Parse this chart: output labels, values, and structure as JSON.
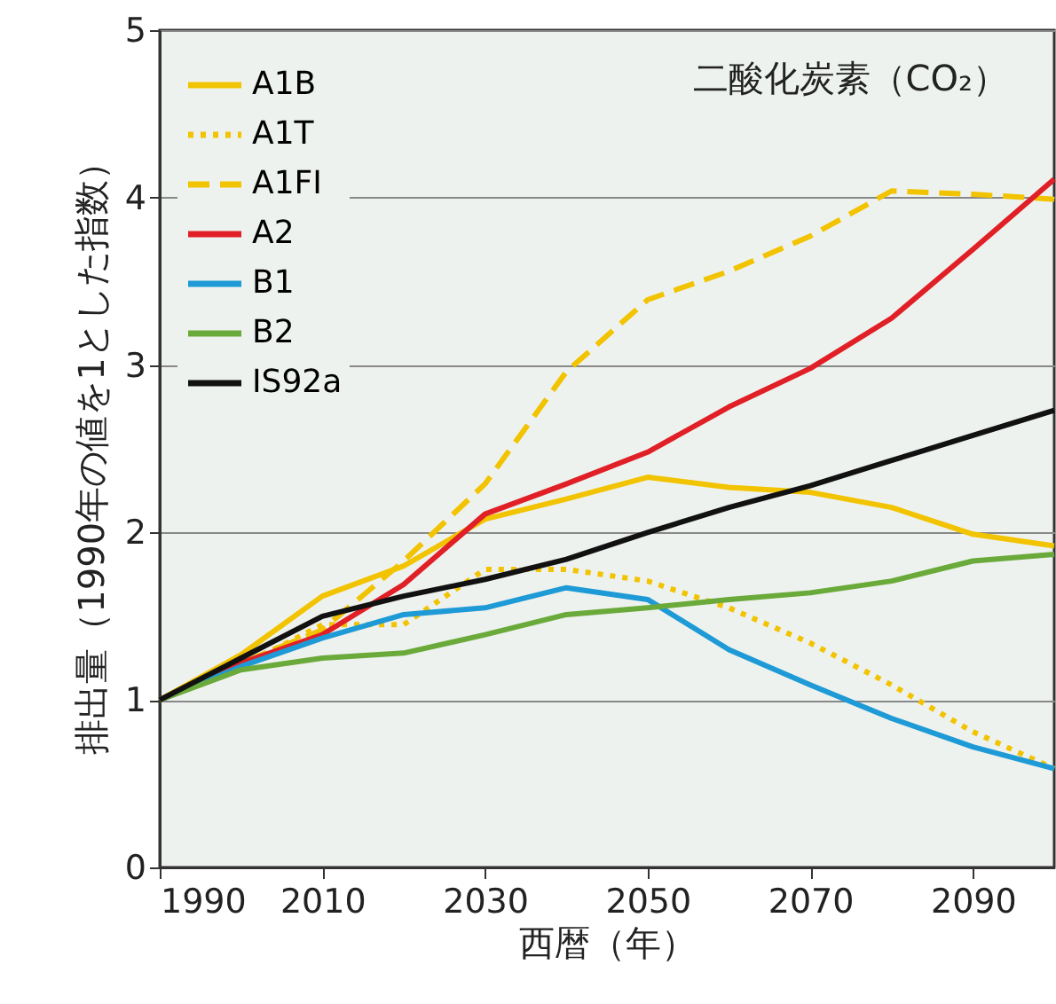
{
  "chart_data": {
    "type": "line",
    "annotations": [
      "二酸化炭素（CO₂）"
    ],
    "xlabel": "西暦（年）",
    "ylabel": "排出量（1990年の値を1とした指数）",
    "x": [
      1990,
      2000,
      2010,
      2020,
      2030,
      2040,
      2050,
      2060,
      2070,
      2080,
      2090,
      2100
    ],
    "series": [
      {
        "name": "A1B",
        "color": "#f2c300",
        "line_style": "solid",
        "values": [
          1.0,
          1.27,
          1.62,
          1.8,
          2.08,
          2.2,
          2.33,
          2.27,
          2.24,
          2.15,
          1.99,
          1.92
        ]
      },
      {
        "name": "A1T",
        "color": "#f2c300",
        "line_style": "dotted",
        "values": [
          1.0,
          1.2,
          1.45,
          1.45,
          1.78,
          1.78,
          1.71,
          1.55,
          1.34,
          1.09,
          0.81,
          0.59
        ]
      },
      {
        "name": "A1FI",
        "color": "#f2c300",
        "line_style": "dashed",
        "values": [
          1.0,
          1.22,
          1.42,
          1.83,
          2.29,
          2.96,
          3.39,
          3.56,
          3.77,
          4.04,
          4.02,
          3.99
        ]
      },
      {
        "name": "A2",
        "color": "#e01f26",
        "line_style": "solid",
        "values": [
          1.0,
          1.22,
          1.39,
          1.69,
          2.11,
          2.29,
          2.48,
          2.75,
          2.98,
          3.28,
          3.69,
          4.11
        ]
      },
      {
        "name": "B1",
        "color": "#1e9ad6",
        "line_style": "solid",
        "values": [
          1.0,
          1.2,
          1.37,
          1.51,
          1.55,
          1.67,
          1.6,
          1.3,
          1.09,
          0.89,
          0.72,
          0.59
        ]
      },
      {
        "name": "B2",
        "color": "#6aaa3a",
        "line_style": "solid",
        "values": [
          1.0,
          1.18,
          1.25,
          1.28,
          1.39,
          1.51,
          1.55,
          1.6,
          1.64,
          1.71,
          1.83,
          1.87
        ]
      },
      {
        "name": "IS92a",
        "color": "#111111",
        "line_style": "solid",
        "values": [
          1.0,
          1.25,
          1.5,
          1.62,
          1.72,
          1.84,
          2.0,
          2.15,
          2.28,
          2.43,
          2.58,
          2.73
        ]
      }
    ],
    "xlim": [
      1990,
      2100
    ],
    "xticks": [
      1990,
      2010,
      2030,
      2050,
      2070,
      2090
    ],
    "ylim": [
      0,
      5
    ],
    "yticks": [
      0,
      1,
      2,
      3,
      4,
      5
    ],
    "grid": "y",
    "legend": "top left"
  }
}
